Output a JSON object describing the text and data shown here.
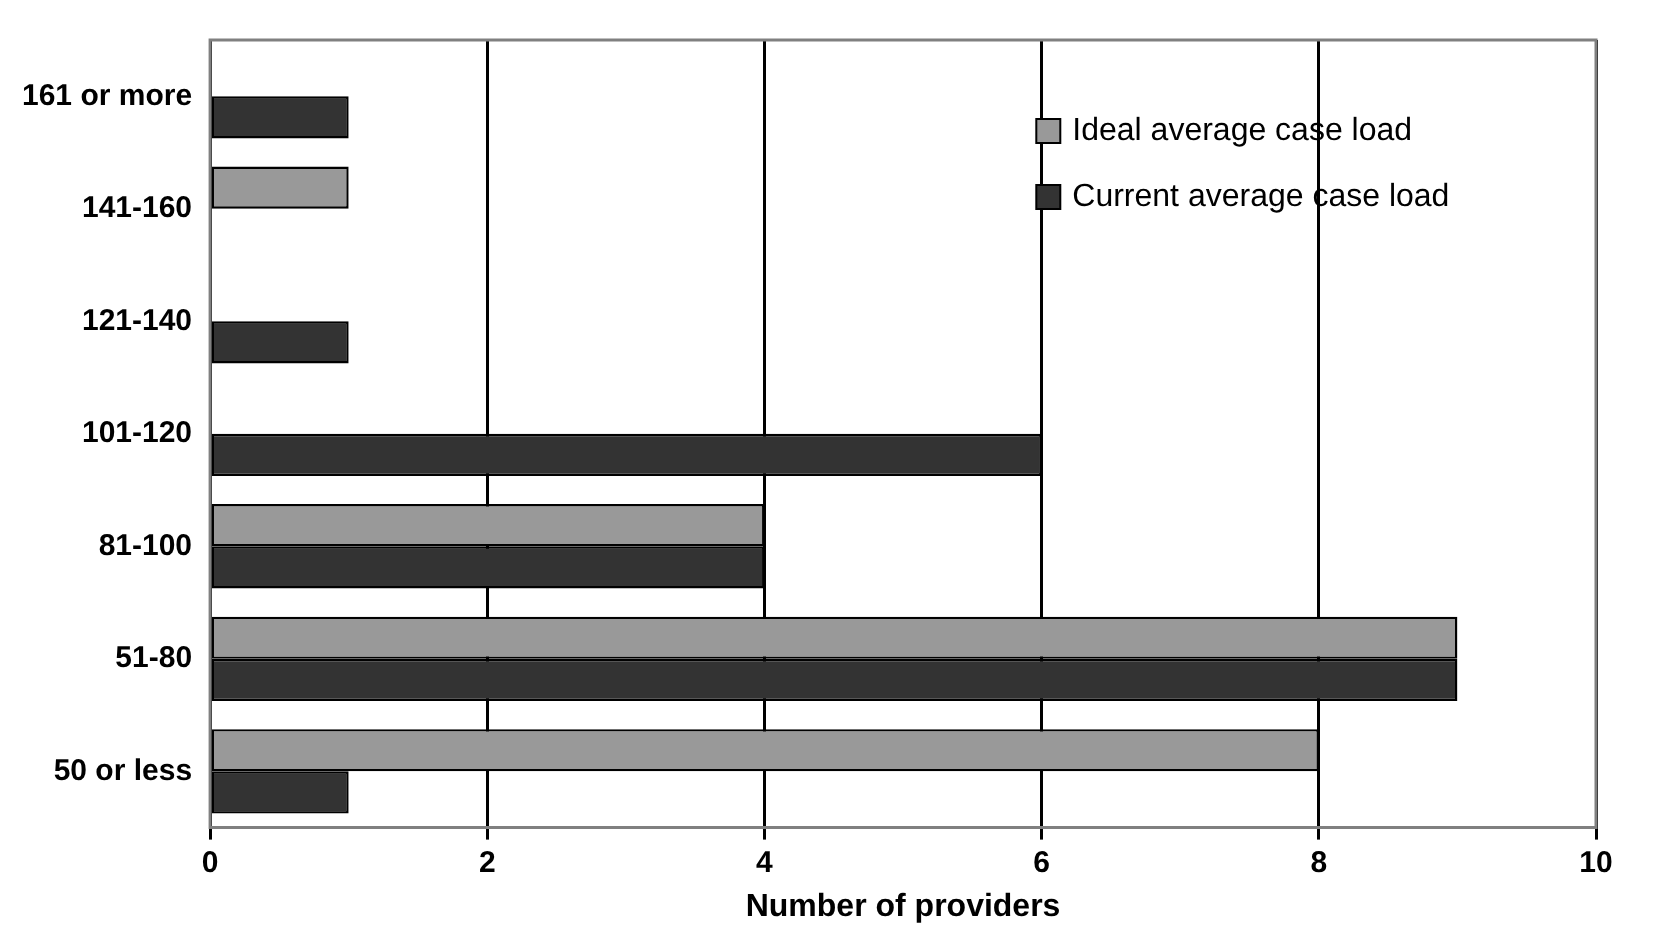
{
  "chart_data": {
    "type": "bar",
    "orientation": "horizontal",
    "xlabel": "Number of providers",
    "categories": [
      "161 or more",
      "141-160",
      "121-140",
      "101-120",
      "81-100",
      "51-80",
      "50 or less"
    ],
    "series": [
      {
        "name": "Ideal average case load",
        "color": "#999999",
        "values": [
          null,
          1,
          null,
          null,
          4,
          9,
          8
        ]
      },
      {
        "name": "Current average case load",
        "color": "#333333",
        "values": [
          1,
          null,
          1,
          6,
          4,
          9,
          1
        ]
      }
    ],
    "xlim": [
      0,
      10
    ],
    "xticks": [
      0,
      2,
      4,
      6,
      8,
      10
    ],
    "grid": "x",
    "legend": "top right"
  }
}
